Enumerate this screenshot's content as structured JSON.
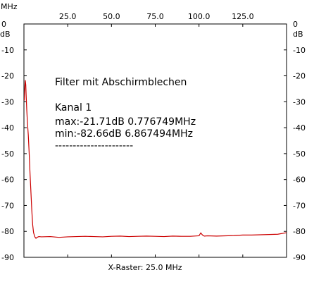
{
  "chart_data": {
    "type": "line",
    "title": "",
    "xlabel": "X-Raster: 25.0 MHz",
    "ylabel": "",
    "x_unit": "MHz",
    "y_unit_left": "dB",
    "y_unit_right": "dB",
    "xlim": [
      0,
      150
    ],
    "ylim": [
      -90,
      0
    ],
    "x_ticks": [
      {
        "value": 25,
        "label": "25.0"
      },
      {
        "value": 50,
        "label": "50.0"
      },
      {
        "value": 75,
        "label": "75.0"
      },
      {
        "value": 100,
        "label": "100.0"
      },
      {
        "value": 125,
        "label": "125.0"
      }
    ],
    "y_ticks": [
      {
        "value": 0,
        "label": "0"
      },
      {
        "value": -10,
        "label": "-10"
      },
      {
        "value": -20,
        "label": "-20"
      },
      {
        "value": -30,
        "label": "-30"
      },
      {
        "value": -40,
        "label": "-40"
      },
      {
        "value": -50,
        "label": "-50"
      },
      {
        "value": -60,
        "label": "-60"
      },
      {
        "value": -70,
        "label": "-70"
      },
      {
        "value": -80,
        "label": "-80"
      },
      {
        "value": -90,
        "label": "-90"
      }
    ],
    "grid": false,
    "line_color": "#cc0000",
    "series": [
      {
        "x": [
          0.2,
          0.45,
          0.777,
          1.05,
          1.3,
          1.6,
          2.0,
          2.5,
          3.0,
          3.5,
          4.0,
          4.5,
          5.0,
          5.5,
          6.0,
          6.3,
          6.87,
          7.5,
          8.5,
          10,
          15,
          20,
          25,
          30,
          35,
          40,
          45,
          50,
          55,
          60,
          65,
          70,
          75,
          80,
          85,
          90,
          95,
          100,
          101,
          102,
          103,
          105,
          110,
          115,
          120,
          125,
          130,
          135,
          140,
          145,
          150
        ],
        "y": [
          -29.5,
          -25.0,
          -21.71,
          -23.5,
          -28.0,
          -33.0,
          -38.0,
          -43.0,
          -50.0,
          -58.0,
          -65.0,
          -72.0,
          -77.5,
          -80.5,
          -81.6,
          -82.2,
          -82.66,
          -82.3,
          -82.0,
          -82.1,
          -82.0,
          -82.3,
          -82.1,
          -82.0,
          -81.9,
          -82.0,
          -82.1,
          -81.9,
          -81.8,
          -82.0,
          -81.9,
          -81.8,
          -81.9,
          -82.0,
          -81.8,
          -81.9,
          -81.9,
          -81.7,
          -80.6,
          -81.4,
          -81.8,
          -81.7,
          -81.8,
          -81.7,
          -81.6,
          -81.4,
          -81.4,
          -81.3,
          -81.2,
          -81.1,
          -80.5
        ]
      }
    ],
    "annotations": [
      "Filter mit Abschirmblechen",
      "Kanal 1",
      "max:-21.71dB 0.776749MHz",
      "min:-82.66dB 6.867494MHz",
      "----------------------"
    ]
  }
}
